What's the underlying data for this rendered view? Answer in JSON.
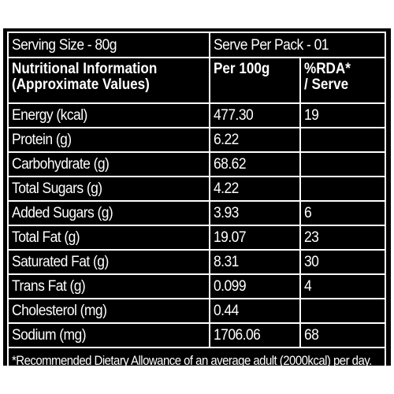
{
  "header": {
    "serving_size": "Serving Size - 80g",
    "serve_per_pack": "Serve Per Pack - 01"
  },
  "columns": {
    "nutrient_line1": "Nutritional Information",
    "nutrient_line2": "(Approximate Values)",
    "per100_label": "Per 100g",
    "rda_line1": "%RDA*",
    "rda_line2": "/ Serve"
  },
  "rows": [
    {
      "nutrient": "Energy (kcal)",
      "per100": "477.30",
      "rda": "19"
    },
    {
      "nutrient": "Protein (g)",
      "per100": "6.22",
      "rda": ""
    },
    {
      "nutrient": "Carbohydrate (g)",
      "per100": "68.62",
      "rda": ""
    },
    {
      "nutrient": "Total Sugars (g)",
      "per100": "4.22",
      "rda": ""
    },
    {
      "nutrient": "Added Sugars (g)",
      "per100": "3.93",
      "rda": "6"
    },
    {
      "nutrient": "Total Fat (g)",
      "per100": "19.07",
      "rda": "23"
    },
    {
      "nutrient": "Saturated Fat (g)",
      "per100": "8.31",
      "rda": "30"
    },
    {
      "nutrient": "Trans Fat (g)",
      "per100": "0.099",
      "rda": "4"
    },
    {
      "nutrient": "Cholesterol (mg)",
      "per100": "0.44",
      "rda": ""
    },
    {
      "nutrient": "Sodium (mg)",
      "per100": "1706.06",
      "rda": "68"
    }
  ],
  "footnote": "*Recommended Dietary Allowance of an average adult (2000kcal) per day.",
  "colors": {
    "background": "#000000",
    "text": "#ffffff",
    "page": "#ffffff"
  }
}
